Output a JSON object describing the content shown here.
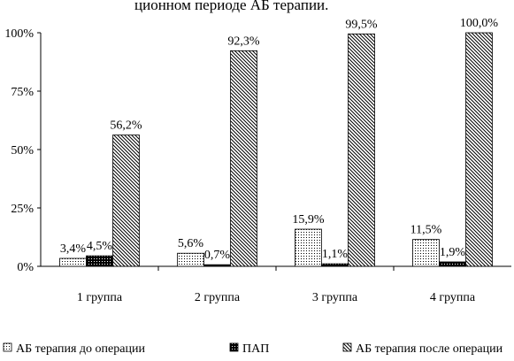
{
  "header_fragment": "ционном периоде АБ терапии.",
  "chart_data": {
    "type": "bar",
    "categories": [
      "1 группа",
      "2 группа",
      "3 группа",
      "4 группа"
    ],
    "series": [
      {
        "name": "АБ терапия до операции",
        "values": [
          3.4,
          5.6,
          15.9,
          11.5
        ],
        "labels": [
          "3,4%",
          "5,6%",
          "15,9%",
          "11,5%"
        ],
        "pattern": "dots"
      },
      {
        "name": "ПАП",
        "values": [
          4.5,
          0.7,
          1.1,
          1.9
        ],
        "labels": [
          "4,5%",
          "0,7%",
          "1,1%",
          "1,9%"
        ],
        "pattern": "solid-dark"
      },
      {
        "name": "АБ терапия после операции",
        "values": [
          56.2,
          92.3,
          99.5,
          100.0
        ],
        "labels": [
          "56,2%",
          "92,3%",
          "99,5%",
          "100,0%"
        ],
        "pattern": "diagonal-hatch"
      }
    ],
    "y_ticks": [
      "0%",
      "25%",
      "50%",
      "75%",
      "100%"
    ],
    "ylim": [
      0,
      100
    ],
    "grid": false,
    "legend": "bottom",
    "title": "",
    "xlabel": "",
    "ylabel": ""
  }
}
